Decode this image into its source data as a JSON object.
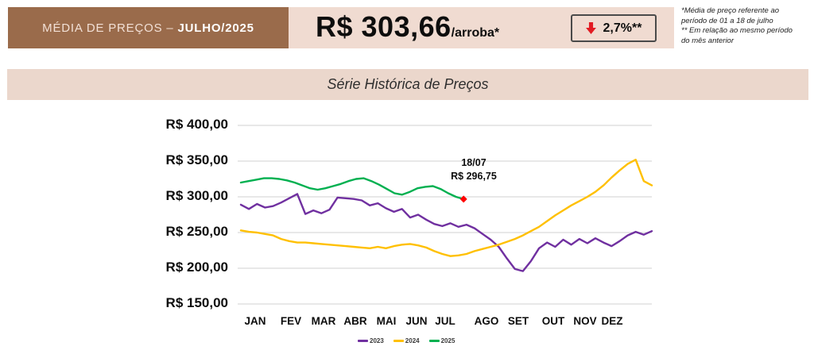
{
  "header": {
    "banner_prefix": "MÉDIA DE PREÇOS – ",
    "banner_month": "JULHO/2025",
    "price_value": "R$ 303,66",
    "price_unit": "/arroba*",
    "change_value": "2,7%**",
    "change_direction": "down",
    "footnote_1": "*Média de preço referente ao período de 01 a 18 de julho",
    "footnote_2": "** Em relação ao mesmo período do mês anterior"
  },
  "section_title": "Série Histórica de Preços",
  "colors": {
    "banner_brown": "#9A6B4B",
    "panel_pink": "#F0DBD1",
    "title_bar_pink": "#EBD7CC",
    "negative_red": "#E21B23",
    "marker_red": "#FF0000",
    "gridline_gray": "#D9D9D9"
  },
  "chart_data": {
    "type": "line",
    "title": "Série Histórica de Preços",
    "x_categories": [
      "JAN",
      "FEV",
      "MAR",
      "ABR",
      "MAI",
      "JUN",
      "JUL",
      "AGO",
      "SET",
      "OUT",
      "NOV",
      "DEZ"
    ],
    "y_ticks": [
      {
        "label": "R$ 400,00",
        "value": 400
      },
      {
        "label": "R$ 350,00",
        "value": 350
      },
      {
        "label": "R$ 300,00",
        "value": 300
      },
      {
        "label": "R$ 250,00",
        "value": 250
      },
      {
        "label": "R$ 200,00",
        "value": 200
      },
      {
        "label": "R$ 150,00",
        "value": 150
      }
    ],
    "ylim": [
      150,
      400
    ],
    "grid": "horizontal",
    "legend_position": "bottom",
    "unit": "R$ per arroba",
    "series": [
      {
        "name": "2023",
        "color": "#7030A0",
        "x_start_frac": 0,
        "x_end_frac": 1,
        "values": [
          289,
          283,
          290,
          285,
          287,
          292,
          298,
          304,
          276,
          281,
          277,
          282,
          299,
          298,
          297,
          295,
          288,
          291,
          284,
          279,
          283,
          271,
          275,
          268,
          262,
          259,
          263,
          258,
          261,
          256,
          248,
          240,
          230,
          214,
          199,
          196,
          210,
          228,
          236,
          230,
          240,
          233,
          241,
          235,
          242,
          236,
          231,
          238,
          246,
          251,
          247,
          252
        ]
      },
      {
        "name": "2024",
        "color": "#FFC000",
        "x_start_frac": 0,
        "x_end_frac": 1,
        "values": [
          253,
          251,
          250,
          248,
          246,
          241,
          238,
          236,
          236,
          235,
          234,
          233,
          232,
          231,
          230,
          229,
          228,
          230,
          228,
          231,
          233,
          234,
          232,
          229,
          224,
          220,
          217,
          218,
          220,
          224,
          227,
          230,
          233,
          237,
          241,
          246,
          252,
          258,
          266,
          274,
          281,
          288,
          294,
          300,
          307,
          316,
          327,
          337,
          346,
          352,
          322,
          316
        ]
      },
      {
        "name": "2025",
        "color": "#00B050",
        "x_start_frac": 0,
        "x_end_frac": 0.542,
        "values": [
          320,
          322,
          324,
          326,
          326,
          325,
          323,
          320,
          316,
          312,
          310,
          312,
          315,
          318,
          322,
          325,
          326,
          322,
          317,
          311,
          305,
          303,
          307,
          312,
          314,
          315,
          311,
          305,
          300,
          296.75
        ],
        "end_marker": {
          "shape": "diamond",
          "color": "#FF0000",
          "value": 296.75
        }
      }
    ],
    "annotation": {
      "line1": "18/07",
      "line2": "R$ 296,75"
    }
  }
}
